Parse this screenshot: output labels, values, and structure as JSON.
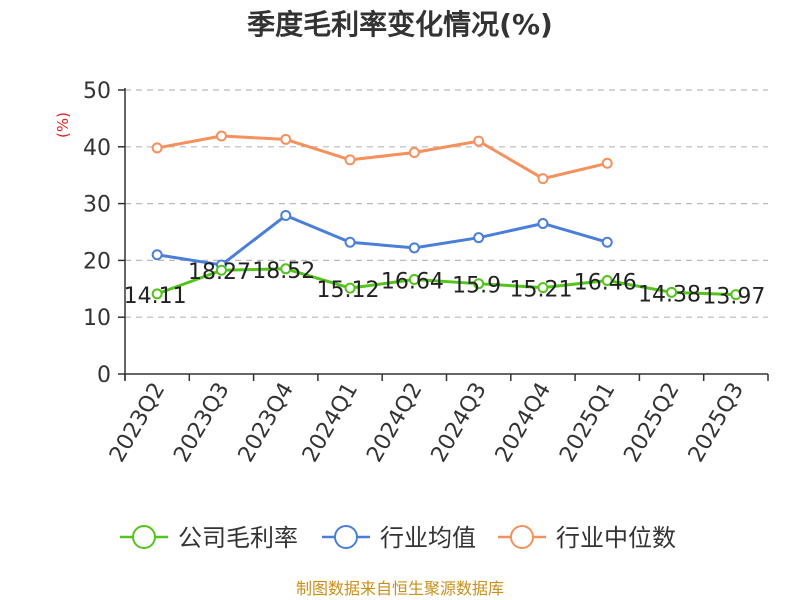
{
  "chart_data": {
    "type": "line",
    "title": "季度毛利率变化情况(%)",
    "ylabel": "(%)",
    "ylim": [
      0,
      50
    ],
    "yticks": [
      0,
      10,
      20,
      30,
      40,
      50
    ],
    "grid": true,
    "legend_position": "bottom",
    "categories": [
      "2023Q2",
      "2023Q3",
      "2023Q4",
      "2024Q1",
      "2024Q2",
      "2024Q3",
      "2024Q4",
      "2025Q1",
      "2025Q2",
      "2025Q3"
    ],
    "series": [
      {
        "name": "公司毛利率",
        "color": "#52c41a",
        "values": [
          14.11,
          18.27,
          18.52,
          15.12,
          16.64,
          15.9,
          15.21,
          16.46,
          14.38,
          13.97
        ],
        "labels": [
          "14.11",
          "18.27",
          "18.52",
          "15.12",
          "16.64",
          "15.9",
          "15.21",
          "16.46",
          "14.38",
          "13.97"
        ]
      },
      {
        "name": "行业均值",
        "color": "#4a7fd9",
        "values": [
          21.0,
          19.2,
          27.9,
          23.2,
          22.2,
          24.0,
          26.5,
          23.2,
          null,
          null
        ]
      },
      {
        "name": "行业中位数",
        "color": "#f4915d",
        "values": [
          39.8,
          41.9,
          41.3,
          37.7,
          39.0,
          41.0,
          34.4,
          37.1,
          null,
          null
        ]
      }
    ],
    "source": "制图数据来自恒生聚源数据库"
  }
}
